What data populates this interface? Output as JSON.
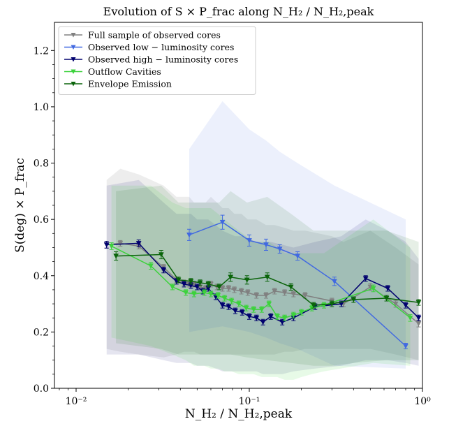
{
  "chart_data": {
    "type": "line",
    "title": "Evolution of S × P_frac along N_H₂ / N_H₂,peak",
    "xlabel": "N_H₂ / N_H₂,peak",
    "ylabel": "S(deg) × P_frac",
    "xscale": "log",
    "xlim": [
      0.0075,
      1.0
    ],
    "ylim": [
      0.0,
      1.3
    ],
    "x_ticks": [
      {
        "value": 0.01,
        "label": "10⁻²"
      },
      {
        "value": 0.1,
        "label": "10⁻¹"
      },
      {
        "value": 1.0,
        "label": "10⁰"
      }
    ],
    "y_ticks": [
      {
        "value": 0.0,
        "label": "0.0"
      },
      {
        "value": 0.2,
        "label": "0.2"
      },
      {
        "value": 0.4,
        "label": "0.4"
      },
      {
        "value": 0.6,
        "label": "0.6"
      },
      {
        "value": 0.8,
        "label": "0.8"
      },
      {
        "value": 1.0,
        "label": "1.0"
      },
      {
        "value": 1.2,
        "label": "1.2"
      }
    ],
    "grid": false,
    "legend_position": "top-left",
    "series": [
      {
        "name": "Full sample of observed cores",
        "color": "#808080",
        "band_opacity": 0.14,
        "x": [
          0.015,
          0.018,
          0.023,
          0.032,
          0.038,
          0.042,
          0.045,
          0.048,
          0.052,
          0.056,
          0.06,
          0.065,
          0.07,
          0.076,
          0.082,
          0.09,
          0.098,
          0.11,
          0.125,
          0.14,
          0.16,
          0.18,
          0.21,
          0.3,
          0.35,
          0.5,
          0.7,
          0.95
        ],
        "y": [
          0.51,
          0.515,
          0.505,
          0.43,
          0.385,
          0.375,
          0.37,
          0.37,
          0.36,
          0.355,
          0.37,
          0.36,
          0.355,
          0.355,
          0.35,
          0.345,
          0.34,
          0.33,
          0.33,
          0.345,
          0.34,
          0.335,
          0.33,
          0.31,
          0.3,
          0.36,
          0.3,
          0.23
        ],
        "err": [
          0.012,
          0.01,
          0.01,
          0.01,
          0.01,
          0.01,
          0.01,
          0.01,
          0.01,
          0.01,
          0.01,
          0.01,
          0.01,
          0.01,
          0.01,
          0.01,
          0.01,
          0.01,
          0.01,
          0.01,
          0.01,
          0.01,
          0.01,
          0.01,
          0.01,
          0.012,
          0.012,
          0.012
        ],
        "lower": [
          0.14,
          0.13,
          0.12,
          0.11,
          0.12,
          0.13,
          0.13,
          0.13,
          0.12,
          0.12,
          0.12,
          0.12,
          0.12,
          0.12,
          0.12,
          0.12,
          0.12,
          0.12,
          0.12,
          0.12,
          0.13,
          0.13,
          0.14,
          0.14,
          0.14,
          0.14,
          0.12,
          0.1
        ],
        "upper": [
          0.74,
          0.78,
          0.76,
          0.72,
          0.68,
          0.68,
          0.68,
          0.66,
          0.66,
          0.66,
          0.68,
          0.66,
          0.64,
          0.64,
          0.62,
          0.62,
          0.6,
          0.6,
          0.58,
          0.58,
          0.57,
          0.56,
          0.56,
          0.54,
          0.52,
          0.56,
          0.5,
          0.44
        ]
      },
      {
        "name": "Observed low − luminosity cores",
        "color": "#4169e1",
        "band_opacity": 0.1,
        "x": [
          0.045,
          0.07,
          0.1,
          0.125,
          0.15,
          0.19,
          0.31,
          0.8
        ],
        "y": [
          0.545,
          0.59,
          0.525,
          0.51,
          0.495,
          0.47,
          0.38,
          0.15
        ],
        "err": [
          0.02,
          0.025,
          0.02,
          0.02,
          0.015,
          0.015,
          0.015,
          0.01
        ],
        "lower": [
          0.2,
          0.22,
          0.2,
          0.18,
          0.16,
          0.14,
          0.08,
          0.07
        ],
        "upper": [
          0.85,
          1.02,
          0.92,
          0.88,
          0.84,
          0.8,
          0.72,
          0.6
        ]
      },
      {
        "name": "Observed high − luminosity cores",
        "color": "#00006e",
        "band_opacity": 0.1,
        "x": [
          0.015,
          0.023,
          0.032,
          0.038,
          0.042,
          0.046,
          0.05,
          0.054,
          0.058,
          0.064,
          0.07,
          0.076,
          0.083,
          0.091,
          0.1,
          0.11,
          0.12,
          0.133,
          0.155,
          0.18,
          0.24,
          0.34,
          0.47,
          0.63,
          0.8,
          0.95
        ],
        "y": [
          0.51,
          0.515,
          0.42,
          0.38,
          0.37,
          0.365,
          0.36,
          0.345,
          0.355,
          0.325,
          0.295,
          0.29,
          0.275,
          0.27,
          0.255,
          0.25,
          0.235,
          0.255,
          0.235,
          0.25,
          0.29,
          0.3,
          0.39,
          0.355,
          0.295,
          0.25
        ],
        "err": [
          0.012,
          0.012,
          0.01,
          0.01,
          0.01,
          0.01,
          0.01,
          0.01,
          0.01,
          0.01,
          0.01,
          0.01,
          0.01,
          0.01,
          0.01,
          0.01,
          0.01,
          0.01,
          0.01,
          0.01,
          0.01,
          0.01,
          0.01,
          0.01,
          0.01,
          0.01
        ],
        "lower": [
          0.12,
          0.12,
          0.1,
          0.09,
          0.09,
          0.09,
          0.08,
          0.08,
          0.08,
          0.07,
          0.06,
          0.06,
          0.06,
          0.06,
          0.06,
          0.06,
          0.05,
          0.05,
          0.05,
          0.06,
          0.07,
          0.08,
          0.1,
          0.1,
          0.09,
          0.08
        ],
        "upper": [
          0.72,
          0.74,
          0.66,
          0.62,
          0.62,
          0.62,
          0.6,
          0.6,
          0.6,
          0.58,
          0.56,
          0.55,
          0.54,
          0.54,
          0.53,
          0.52,
          0.52,
          0.52,
          0.51,
          0.5,
          0.52,
          0.54,
          0.6,
          0.56,
          0.52,
          0.46
        ]
      },
      {
        "name": "Outflow Cavities",
        "color": "#3cd23c",
        "band_opacity": 0.12,
        "x": [
          0.016,
          0.027,
          0.036,
          0.043,
          0.048,
          0.055,
          0.06,
          0.066,
          0.072,
          0.079,
          0.087,
          0.096,
          0.106,
          0.118,
          0.13,
          0.145,
          0.16,
          0.18,
          0.2,
          0.23,
          0.27,
          0.52,
          0.85
        ],
        "y": [
          0.505,
          0.435,
          0.36,
          0.34,
          0.335,
          0.34,
          0.335,
          0.33,
          0.32,
          0.31,
          0.3,
          0.285,
          0.28,
          0.28,
          0.3,
          0.255,
          0.25,
          0.26,
          0.27,
          0.285,
          0.295,
          0.355,
          0.25
        ],
        "err": [
          0.012,
          0.012,
          0.01,
          0.01,
          0.01,
          0.01,
          0.01,
          0.01,
          0.01,
          0.01,
          0.01,
          0.01,
          0.01,
          0.01,
          0.01,
          0.01,
          0.01,
          0.01,
          0.01,
          0.01,
          0.01,
          0.012,
          0.012
        ],
        "lower": [
          0.18,
          0.15,
          0.12,
          0.1,
          0.08,
          0.08,
          0.07,
          0.07,
          0.06,
          0.06,
          0.05,
          0.05,
          0.05,
          0.04,
          0.04,
          0.04,
          0.03,
          0.03,
          0.04,
          0.05,
          0.06,
          0.09,
          0.08
        ],
        "upper": [
          0.72,
          0.72,
          0.66,
          0.64,
          0.64,
          0.64,
          0.64,
          0.62,
          0.6,
          0.58,
          0.56,
          0.54,
          0.52,
          0.52,
          0.52,
          0.5,
          0.48,
          0.48,
          0.48,
          0.48,
          0.48,
          0.6,
          0.5
        ]
      },
      {
        "name": "Envelope Emission",
        "color": "#0a640a",
        "band_opacity": 0.1,
        "x": [
          0.017,
          0.031,
          0.039,
          0.046,
          0.052,
          0.058,
          0.067,
          0.078,
          0.097,
          0.127,
          0.174,
          0.235,
          0.3,
          0.4,
          0.62,
          0.95
        ],
        "y": [
          0.47,
          0.475,
          0.385,
          0.38,
          0.375,
          0.37,
          0.36,
          0.395,
          0.385,
          0.395,
          0.36,
          0.295,
          0.3,
          0.315,
          0.32,
          0.305
        ],
        "err": [
          0.015,
          0.015,
          0.01,
          0.01,
          0.01,
          0.01,
          0.01,
          0.015,
          0.015,
          0.015,
          0.012,
          0.01,
          0.01,
          0.01,
          0.01,
          0.01
        ],
        "lower": [
          0.16,
          0.14,
          0.12,
          0.12,
          0.12,
          0.12,
          0.12,
          0.12,
          0.11,
          0.1,
          0.09,
          0.08,
          0.08,
          0.09,
          0.1,
          0.1
        ],
        "upper": [
          0.7,
          0.72,
          0.66,
          0.66,
          0.66,
          0.66,
          0.66,
          0.7,
          0.66,
          0.68,
          0.62,
          0.56,
          0.56,
          0.56,
          0.56,
          0.52
        ]
      }
    ]
  }
}
